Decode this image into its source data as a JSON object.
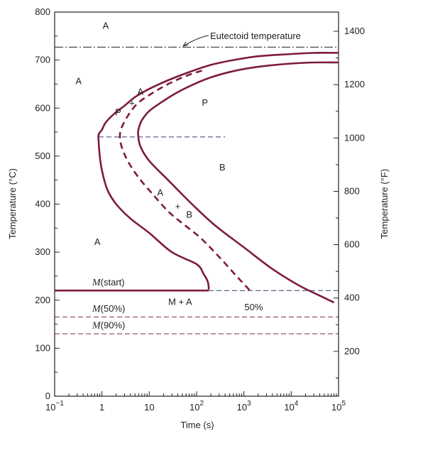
{
  "chart_data": {
    "type": "line",
    "xscale": "log",
    "xlim": [
      0.1,
      100000
    ],
    "ylim": [
      0,
      800
    ],
    "xlabel": "Time (s)",
    "ylabel": "Temperature (°C)",
    "ylabel_right": "Temperature (°F)",
    "x_ticks": [
      {
        "value": 0.1,
        "base": "10",
        "exp": "−1"
      },
      {
        "value": 1,
        "base": "1",
        "exp": ""
      },
      {
        "value": 10,
        "base": "10",
        "exp": ""
      },
      {
        "value": 100,
        "base": "10",
        "exp": "2"
      },
      {
        "value": 1000,
        "base": "10",
        "exp": "3"
      },
      {
        "value": 10000,
        "base": "10",
        "exp": "4"
      },
      {
        "value": 100000,
        "base": "10",
        "exp": "5"
      }
    ],
    "y_ticks": [
      "0",
      "100",
      "200",
      "300",
      "400",
      "500",
      "600",
      "700",
      "800"
    ],
    "y_ticks_right": [
      "200",
      "400",
      "600",
      "800",
      "1000",
      "1200",
      "1400"
    ],
    "series": [
      {
        "role": "start",
        "style": "solid",
        "x": [
          100000,
          30000,
          8000,
          2000,
          600,
          200,
          70,
          25,
          10,
          5,
          3,
          1.8,
          1.2,
          1.0,
          0.85,
          0.85,
          0.9,
          1.0,
          1.3,
          2.0,
          4.0,
          10,
          30,
          100,
          140,
          170,
          180,
          180
        ],
        "y": [
          715,
          715,
          712,
          708,
          700,
          690,
          675,
          658,
          640,
          623,
          605,
          588,
          570,
          555,
          545,
          530,
          500,
          470,
          430,
          400,
          370,
          340,
          300,
          275,
          255,
          240,
          228,
          222
        ]
      },
      {
        "role": "50%",
        "style": "dashed",
        "x": [
          130,
          60,
          25,
          12,
          6,
          4,
          3,
          2.5,
          2.4,
          2.6,
          3.5,
          6,
          12,
          25,
          50,
          120,
          300,
          700,
          1500
        ],
        "y": [
          678,
          667,
          650,
          632,
          612,
          592,
          572,
          555,
          540,
          520,
          490,
          455,
          420,
          385,
          360,
          330,
          290,
          250,
          215
        ]
      },
      {
        "role": "finish",
        "style": "solid",
        "x": [
          100000,
          30000,
          8000,
          2000,
          600,
          200,
          80,
          35,
          18,
          10,
          7,
          6,
          5.8,
          6.5,
          10,
          25,
          80,
          250,
          1000,
          4000,
          15000,
          50000,
          80000
        ],
        "y": [
          695,
          695,
          692,
          686,
          677,
          664,
          648,
          630,
          612,
          594,
          575,
          558,
          545,
          520,
          490,
          450,
          400,
          355,
          310,
          265,
          230,
          205,
          195
        ]
      }
    ],
    "reference_lines": [
      {
        "name": "Eutectoid temperature",
        "y": 727,
        "style": "dashdot"
      },
      {
        "name": "M(start)",
        "y": 220,
        "style": "solid",
        "x_end": 180
      },
      {
        "name": "M(start) continuation",
        "y": 220,
        "style": "dashed",
        "x_start": 180
      },
      {
        "name": "M(50%)",
        "y": 165,
        "style": "dashed"
      },
      {
        "name": "M(90%)",
        "y": 130,
        "style": "dashed"
      },
      {
        "name": "nose line",
        "y": 540,
        "style": "dashed",
        "x_start": 0.85,
        "x_end": 400
      }
    ],
    "annotations": {
      "eutectoid": "Eutectoid temperature",
      "pct50": "50%",
      "m_start": "(start)",
      "m_50": "(50%)",
      "m_90": "(90%)",
      "m_symbol": "M",
      "regions": [
        {
          "text": "A",
          "x": 1.2,
          "y": 765
        },
        {
          "text": "A",
          "x": 0.32,
          "y": 650
        },
        {
          "text": "A",
          "x": 6.5,
          "y": 628
        },
        {
          "text": "P",
          "x": 2.2,
          "y": 585
        },
        {
          "text": "P",
          "x": 150,
          "y": 605
        },
        {
          "text": "B",
          "x": 350,
          "y": 470
        },
        {
          "text": "A",
          "x": 17,
          "y": 418
        },
        {
          "text": "B",
          "x": 70,
          "y": 372
        },
        {
          "text": "A",
          "x": 0.8,
          "y": 315
        },
        {
          "text": "M + A",
          "x": 45,
          "y": 190
        }
      ],
      "plus_marks": [
        {
          "x": 4.3,
          "y": 610
        },
        {
          "x": 40,
          "y": 395
        }
      ]
    },
    "colors": {
      "curve": "#7d1b3b",
      "axis": "#222222",
      "guide": "#2d3f66",
      "mline": "#7a2a52"
    }
  }
}
